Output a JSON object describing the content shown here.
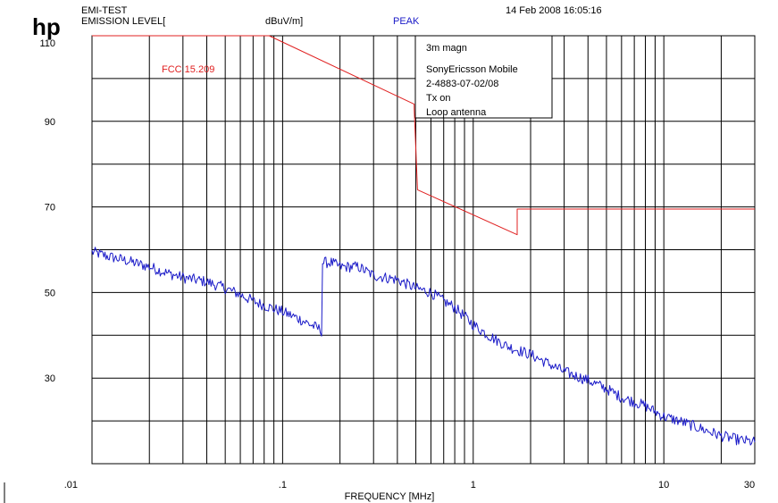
{
  "header": {
    "logo": "hp",
    "test_name": "EMI-TEST",
    "emission_label": "EMISSION LEVEL[",
    "unit": "dBuV/m]",
    "detector": "PEAK",
    "datetime": "14 Feb 2008  16:05:16"
  },
  "notes": [
    "3m magn",
    "SonyEricsson Mobile",
    "2-4883-07-02/08",
    "Tx on",
    "Loop antenna"
  ],
  "colors": {
    "limit": "#e02020",
    "trace": "#1a1ac8",
    "grid": "#000000"
  },
  "chart_data": {
    "type": "line",
    "title": "",
    "xlabel": "FREQUENCY [MHz]",
    "ylabel": "",
    "x_scale": "log",
    "xlim": [
      0.01,
      30
    ],
    "ylim": [
      10,
      110
    ],
    "x_ticks": [
      {
        "value": 0.01,
        "label": ".01"
      },
      {
        "value": 0.1,
        "label": ".1"
      },
      {
        "value": 1,
        "label": "1"
      },
      {
        "value": 10,
        "label": "10"
      },
      {
        "value": 30,
        "label": "30"
      }
    ],
    "y_ticks": [
      {
        "value": 110,
        "label": "110"
      },
      {
        "value": 90,
        "label": "90"
      },
      {
        "value": 70,
        "label": "70"
      },
      {
        "value": 50,
        "label": "50"
      },
      {
        "value": 30,
        "label": "30"
      }
    ],
    "grid": true,
    "series": [
      {
        "name": "FCC 15.209",
        "points": [
          [
            0.01,
            110
          ],
          [
            0.085,
            110
          ],
          [
            0.49,
            94
          ],
          [
            0.49,
            93
          ],
          [
            0.51,
            74
          ],
          [
            1.7,
            63.5
          ],
          [
            1.7,
            69.5
          ],
          [
            30,
            69.5
          ]
        ]
      },
      {
        "name": "PEAK",
        "points": [
          [
            0.01,
            59.5
          ],
          [
            0.012,
            58.5
          ],
          [
            0.015,
            57.5
          ],
          [
            0.02,
            56
          ],
          [
            0.025,
            54.5
          ],
          [
            0.03,
            53.5
          ],
          [
            0.04,
            52.5
          ],
          [
            0.05,
            51
          ],
          [
            0.06,
            49.5
          ],
          [
            0.07,
            48
          ],
          [
            0.08,
            47
          ],
          [
            0.1,
            45.5
          ],
          [
            0.12,
            44
          ],
          [
            0.14,
            42.5
          ],
          [
            0.155,
            41.5
          ],
          [
            0.16,
            41
          ],
          [
            0.162,
            57
          ],
          [
            0.18,
            57
          ],
          [
            0.2,
            56
          ],
          [
            0.25,
            56
          ],
          [
            0.3,
            54
          ],
          [
            0.4,
            53
          ],
          [
            0.5,
            51
          ],
          [
            0.6,
            50
          ],
          [
            0.7,
            48
          ],
          [
            0.8,
            46.5
          ],
          [
            1.0,
            42.5
          ],
          [
            1.2,
            40
          ],
          [
            1.5,
            37.5
          ],
          [
            2,
            35.5
          ],
          [
            3,
            31.5
          ],
          [
            4,
            29.5
          ],
          [
            5,
            27.5
          ],
          [
            6,
            25.5
          ],
          [
            8,
            23.5
          ],
          [
            10,
            21
          ],
          [
            12,
            20
          ],
          [
            15,
            18.5
          ],
          [
            20,
            16.5
          ],
          [
            25,
            15.5
          ],
          [
            30,
            15
          ]
        ]
      }
    ],
    "annotations": [
      {
        "text": "FCC 15.209",
        "x": 0.03,
        "y": 103
      }
    ]
  }
}
